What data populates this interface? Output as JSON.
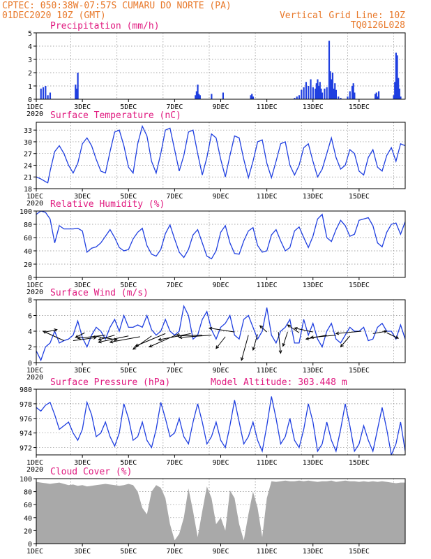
{
  "header": {
    "line1": "CPTEC:  050:38W-07:57S  CUMARU DO NORTE (PA)",
    "line2_left": "01DEC2020 10Z (GMT)",
    "line2_right": "Vertical Grid Line: 10Z",
    "line3_right": "TQ0126L028"
  },
  "model_altitude": "Model Altitude: 303.448 m",
  "x_tick_labels": [
    "1DEC",
    "3DEC",
    "5DEC",
    "7DEC",
    "9DEC",
    "11DEC",
    "13DEC",
    "15DEC"
  ],
  "x_year_label": "2020",
  "colors": {
    "header": "#e8792b",
    "panel_title": "#e0197f",
    "line": "#1f3fe0",
    "precip_bar": "#1f3fe0",
    "cloud_fill": "#a9a9a9",
    "wind_arrow": "#000000"
  },
  "chart_data": [
    {
      "type": "bar",
      "title": "Precipitation (mm/h)",
      "ylim": [
        0,
        5
      ],
      "yticks": [
        0,
        1,
        2,
        3,
        4,
        5
      ],
      "x": [
        0.2,
        0.3,
        0.4,
        0.5,
        0.6,
        1.7,
        1.75,
        1.8,
        6.9,
        6.95,
        7.0,
        7.05,
        7.1,
        7.6,
        8.1,
        9.3,
        9.35,
        9.4,
        11.2,
        11.3,
        11.4,
        11.5,
        11.6,
        11.7,
        11.8,
        11.9,
        12.0,
        12.1,
        12.15,
        12.2,
        12.25,
        12.3,
        12.35,
        12.4,
        12.5,
        12.6,
        12.7,
        12.75,
        12.8,
        12.85,
        12.9,
        12.95,
        13.0,
        13.1,
        13.2,
        13.5,
        13.6,
        13.7,
        13.75,
        13.8,
        14.7,
        14.75,
        14.8,
        14.85,
        15.5,
        15.55,
        15.6,
        15.65,
        15.7,
        15.75,
        15.8
      ],
      "values": [
        0.8,
        0.9,
        1.0,
        0.3,
        0.5,
        1.1,
        0.8,
        2.0,
        0.3,
        0.6,
        1.1,
        0.4,
        0.3,
        0.4,
        0.5,
        0.3,
        0.4,
        0.2,
        0.1,
        0.2,
        0.3,
        0.7,
        0.9,
        1.3,
        1.0,
        1.5,
        0.9,
        0.8,
        1.2,
        1.5,
        1.0,
        1.3,
        0.8,
        0.5,
        0.8,
        0.9,
        4.4,
        2.1,
        1.5,
        2.0,
        0.8,
        1.2,
        0.7,
        0.2,
        0.1,
        0.2,
        0.6,
        1.0,
        1.2,
        0.5,
        0.4,
        0.5,
        0.2,
        0.6,
        0.3,
        1.3,
        3.5,
        3.3,
        1.6,
        0.8,
        0.2
      ]
    },
    {
      "type": "line",
      "title": "Surface Temperature (nC)",
      "ylim": [
        18,
        35
      ],
      "yticks": [
        18,
        21,
        24,
        27,
        30,
        33
      ],
      "x": [
        0.0,
        0.2,
        0.4,
        0.5,
        0.6,
        0.8,
        1.0,
        1.2,
        1.4,
        1.6,
        1.8,
        2.0,
        2.2,
        2.4,
        2.6,
        2.8,
        3.0,
        3.2,
        3.4,
        3.6,
        3.8,
        4.0,
        4.2,
        4.4,
        4.6,
        4.8,
        5.0,
        5.2,
        5.4,
        5.6,
        5.8,
        6.0,
        6.2,
        6.4,
        6.6,
        6.8,
        7.0,
        7.2,
        7.4,
        7.6,
        7.8,
        8.0,
        8.2,
        8.4,
        8.6,
        8.8,
        9.0,
        9.2,
        9.4,
        9.6,
        9.8,
        10.0,
        10.2,
        10.4,
        10.6,
        10.8,
        11.0,
        11.2,
        11.4,
        11.6,
        11.8,
        12.0,
        12.2,
        12.4,
        12.6,
        12.8,
        13.0,
        13.2,
        13.4,
        13.6,
        13.8,
        14.0,
        14.2,
        14.4,
        14.6,
        14.8,
        15.0,
        15.2,
        15.4,
        15.6,
        15.8,
        16.0
      ],
      "values": [
        21.0,
        20.5,
        19.8,
        19.5,
        22.5,
        27.5,
        29.0,
        27.0,
        24.0,
        22.0,
        24.5,
        29.5,
        31.0,
        29.0,
        25.5,
        22.5,
        22.0,
        27.5,
        32.5,
        33.0,
        29.0,
        23.5,
        22.0,
        29.5,
        34.0,
        31.5,
        25.0,
        22.0,
        27.0,
        33.0,
        33.5,
        28.0,
        22.5,
        26.5,
        32.5,
        33.0,
        27.0,
        21.5,
        26.0,
        32.0,
        31.0,
        25.5,
        21.0,
        26.5,
        31.5,
        31.0,
        25.5,
        20.8,
        25.0,
        30.0,
        30.5,
        24.5,
        20.8,
        25.0,
        29.5,
        30.0,
        24.0,
        21.5,
        24.0,
        28.5,
        29.5,
        25.0,
        21.0,
        23.0,
        27.0,
        31.0,
        26.0,
        23.0,
        24.0,
        28.0,
        27.0,
        22.5,
        21.5,
        26.0,
        28.0,
        23.5,
        22.5,
        26.5,
        28.5,
        25.0,
        29.5,
        29.0
      ]
    },
    {
      "type": "line",
      "title": "Relative Humidity (%)",
      "ylim": [
        0,
        100
      ],
      "yticks": [
        0,
        20,
        40,
        60,
        80,
        100
      ],
      "x": [
        0.0,
        0.2,
        0.4,
        0.6,
        0.8,
        1.0,
        1.2,
        1.4,
        1.6,
        1.8,
        2.0,
        2.2,
        2.4,
        2.6,
        2.8,
        3.0,
        3.2,
        3.4,
        3.6,
        3.8,
        4.0,
        4.2,
        4.4,
        4.6,
        4.8,
        5.0,
        5.2,
        5.4,
        5.6,
        5.8,
        6.0,
        6.2,
        6.4,
        6.6,
        6.8,
        7.0,
        7.2,
        7.4,
        7.6,
        7.8,
        8.0,
        8.2,
        8.4,
        8.6,
        8.8,
        9.0,
        9.2,
        9.4,
        9.6,
        9.8,
        10.0,
        10.2,
        10.4,
        10.6,
        10.8,
        11.0,
        11.2,
        11.4,
        11.6,
        11.8,
        12.0,
        12.2,
        12.4,
        12.6,
        12.8,
        13.0,
        13.2,
        13.4,
        13.6,
        13.8,
        14.0,
        14.2,
        14.4,
        14.6,
        14.8,
        15.0,
        15.2,
        15.4,
        15.6,
        15.8,
        16.0
      ],
      "values": [
        95,
        100,
        98,
        88,
        52,
        78,
        73,
        73,
        73,
        74,
        70,
        38,
        44,
        46,
        52,
        62,
        72,
        60,
        45,
        40,
        42,
        58,
        68,
        74,
        48,
        35,
        32,
        42,
        66,
        79,
        58,
        38,
        30,
        42,
        64,
        72,
        52,
        32,
        28,
        40,
        68,
        78,
        52,
        36,
        35,
        55,
        70,
        75,
        48,
        38,
        40,
        64,
        72,
        55,
        40,
        45,
        70,
        76,
        60,
        45,
        62,
        88,
        95,
        60,
        54,
        72,
        86,
        78,
        62,
        65,
        86,
        88,
        90,
        78,
        52,
        46,
        68,
        80,
        82,
        65,
        84
      ]
    },
    {
      "type": "line",
      "title": "Surface Wind (m/s)",
      "ylim": [
        0,
        8
      ],
      "yticks": [
        0,
        2,
        4,
        6,
        8
      ],
      "x": [
        0.0,
        0.2,
        0.4,
        0.6,
        0.8,
        1.0,
        1.2,
        1.4,
        1.6,
        1.8,
        2.0,
        2.2,
        2.4,
        2.6,
        2.8,
        3.0,
        3.2,
        3.4,
        3.6,
        3.8,
        4.0,
        4.2,
        4.4,
        4.6,
        4.8,
        5.0,
        5.2,
        5.4,
        5.6,
        5.8,
        6.0,
        6.2,
        6.4,
        6.6,
        6.8,
        7.0,
        7.2,
        7.4,
        7.6,
        7.8,
        8.0,
        8.2,
        8.4,
        8.6,
        8.8,
        9.0,
        9.2,
        9.4,
        9.6,
        9.8,
        10.0,
        10.2,
        10.4,
        10.6,
        10.8,
        11.0,
        11.2,
        11.4,
        11.6,
        11.8,
        12.0,
        12.2,
        12.4,
        12.6,
        12.8,
        13.0,
        13.2,
        13.4,
        13.6,
        13.8,
        14.0,
        14.2,
        14.4,
        14.6,
        14.8,
        15.0,
        15.2,
        15.4,
        15.6,
        15.8,
        16.0
      ],
      "values": [
        1.5,
        0.3,
        2.0,
        2.5,
        4.0,
        2.5,
        2.8,
        3.0,
        3.5,
        5.3,
        3.2,
        2.0,
        3.5,
        4.5,
        4.0,
        3.0,
        4.5,
        5.5,
        4.0,
        6.0,
        4.5,
        4.5,
        4.8,
        4.5,
        6.0,
        4.2,
        3.5,
        4.0,
        5.5,
        4.0,
        3.5,
        4.0,
        7.2,
        6.0,
        3.0,
        3.5,
        5.5,
        6.5,
        4.2,
        3.0,
        4.5,
        5.0,
        6.0,
        3.5,
        3.0,
        5.5,
        6.0,
        4.5,
        3.0,
        4.0,
        7.0,
        3.5,
        2.5,
        4.0,
        4.5,
        5.5,
        2.5,
        2.5,
        5.5,
        3.5,
        5.0,
        3.0,
        2.0,
        4.0,
        5.0,
        3.0,
        2.5,
        3.5,
        4.5,
        4.0,
        4.0,
        4.5,
        2.8,
        3.0,
        4.5,
        5.0,
        4.0,
        4.0,
        3.0,
        4.8,
        3.0
      ],
      "arrows": [
        {
          "x": 0.4,
          "y": 3.9,
          "u": 0.5,
          "v": 0.3
        },
        {
          "x": 1.2,
          "y": 2.8,
          "u": -0.9,
          "v": 1.2
        },
        {
          "x": 1.6,
          "y": 2.8,
          "u": 1.0,
          "v": 0.4
        },
        {
          "x": 2.1,
          "y": 3.8,
          "u": -0.4,
          "v": -0.6
        },
        {
          "x": 2.5,
          "y": 3.4,
          "u": 1.0,
          "v": -0.5
        },
        {
          "x": 3.0,
          "y": 3.5,
          "u": -1.2,
          "v": -0.4
        },
        {
          "x": 3.4,
          "y": 3.5,
          "u": -0.7,
          "v": -0.6
        },
        {
          "x": 4.0,
          "y": 3.4,
          "u": -1.3,
          "v": -0.8
        },
        {
          "x": 4.5,
          "y": 3.3,
          "u": -1.3,
          "v": -0.7
        },
        {
          "x": 5.0,
          "y": 3.4,
          "u": -0.8,
          "v": -1.7
        },
        {
          "x": 5.6,
          "y": 3.7,
          "u": -1.3,
          "v": -1.6
        },
        {
          "x": 6.2,
          "y": 3.7,
          "u": -1.3,
          "v": -1.7
        },
        {
          "x": 6.7,
          "y": 3.7,
          "u": -1.4,
          "v": -0.8
        },
        {
          "x": 7.2,
          "y": 3.5,
          "u": -1.1,
          "v": -0.1
        },
        {
          "x": 7.6,
          "y": 3.5,
          "u": -1.4,
          "v": -0.3
        },
        {
          "x": 8.2,
          "y": 3.3,
          "u": -0.4,
          "v": -1.5
        },
        {
          "x": 8.6,
          "y": 3.9,
          "u": -1.1,
          "v": 0.5
        },
        {
          "x": 9.2,
          "y": 3.5,
          "u": -0.3,
          "v": -3.2
        },
        {
          "x": 9.6,
          "y": 3.6,
          "u": -0.2,
          "v": -2.0
        },
        {
          "x": 10.0,
          "y": 3.9,
          "u": -0.3,
          "v": 0.8
        },
        {
          "x": 10.5,
          "y": 3.9,
          "u": 0.1,
          "v": -2.7
        },
        {
          "x": 10.9,
          "y": 3.9,
          "u": -0.2,
          "v": -1.8
        },
        {
          "x": 11.4,
          "y": 3.8,
          "u": -0.5,
          "v": 1.0
        },
        {
          "x": 12.0,
          "y": 3.9,
          "u": -0.8,
          "v": 0.5
        },
        {
          "x": 12.6,
          "y": 3.5,
          "u": -0.9,
          "v": -0.5
        },
        {
          "x": 13.0,
          "y": 3.5,
          "u": -1.1,
          "v": -0.3
        },
        {
          "x": 13.6,
          "y": 3.4,
          "u": -0.4,
          "v": -1.4
        },
        {
          "x": 14.1,
          "y": 4.0,
          "u": -1.1,
          "v": -0.3
        },
        {
          "x": 14.6,
          "y": 3.7,
          "u": 0.6,
          "v": 0.3
        },
        {
          "x": 15.2,
          "y": 3.8,
          "u": 0.5,
          "v": -0.7
        }
      ]
    },
    {
      "type": "line",
      "title": "Surface Pressure (hPa)",
      "ylim": [
        971,
        980
      ],
      "yticks": [
        972,
        974,
        976,
        978,
        980
      ],
      "x": [
        0.0,
        0.2,
        0.4,
        0.6,
        0.8,
        1.0,
        1.2,
        1.4,
        1.6,
        1.8,
        2.0,
        2.2,
        2.4,
        2.6,
        2.8,
        3.0,
        3.2,
        3.4,
        3.6,
        3.8,
        4.0,
        4.2,
        4.4,
        4.6,
        4.8,
        5.0,
        5.2,
        5.4,
        5.6,
        5.8,
        6.0,
        6.2,
        6.4,
        6.6,
        6.8,
        7.0,
        7.2,
        7.4,
        7.6,
        7.8,
        8.0,
        8.2,
        8.4,
        8.6,
        8.8,
        9.0,
        9.2,
        9.4,
        9.6,
        9.8,
        10.0,
        10.2,
        10.4,
        10.6,
        10.8,
        11.0,
        11.2,
        11.4,
        11.6,
        11.8,
        12.0,
        12.2,
        12.4,
        12.6,
        12.8,
        13.0,
        13.2,
        13.4,
        13.6,
        13.8,
        14.0,
        14.2,
        14.4,
        14.6,
        14.8,
        15.0,
        15.2,
        15.4,
        15.6,
        15.8,
        16.0
      ],
      "values": [
        977.5,
        977.0,
        977.8,
        978.2,
        976.5,
        974.5,
        975.0,
        975.5,
        974.0,
        973.0,
        974.5,
        978.2,
        976.5,
        973.5,
        974.0,
        975.5,
        973.5,
        972.2,
        974.0,
        978.0,
        976.0,
        973.0,
        973.5,
        975.5,
        973.0,
        972.0,
        974.5,
        978.2,
        976.0,
        973.5,
        974.0,
        976.0,
        973.5,
        972.5,
        975.5,
        978.0,
        975.5,
        972.5,
        973.5,
        975.5,
        973.0,
        972.0,
        975.0,
        978.5,
        975.5,
        972.5,
        973.5,
        975.5,
        973.0,
        971.5,
        975.0,
        979.0,
        976.0,
        972.5,
        973.5,
        976.0,
        973.0,
        972.0,
        974.5,
        978.0,
        975.5,
        971.5,
        972.5,
        975.5,
        973.0,
        971.5,
        974.5,
        978.0,
        975.0,
        971.5,
        972.5,
        975.0,
        973.0,
        971.5,
        974.5,
        977.5,
        974.5,
        971.0,
        972.5,
        975.5,
        971.5
      ]
    },
    {
      "type": "area",
      "title": "Cloud Cover (%)",
      "ylim": [
        0,
        100
      ],
      "yticks": [
        0,
        20,
        40,
        60,
        80,
        100
      ],
      "x": [
        0.0,
        0.2,
        0.4,
        0.6,
        0.8,
        1.0,
        1.2,
        1.4,
        1.6,
        1.8,
        2.0,
        2.2,
        2.4,
        2.6,
        2.8,
        3.0,
        3.2,
        3.4,
        3.6,
        3.8,
        4.0,
        4.2,
        4.4,
        4.6,
        4.8,
        5.0,
        5.2,
        5.4,
        5.6,
        5.8,
        6.0,
        6.2,
        6.4,
        6.6,
        6.8,
        7.0,
        7.2,
        7.4,
        7.6,
        7.8,
        8.0,
        8.2,
        8.4,
        8.6,
        8.8,
        9.0,
        9.2,
        9.4,
        9.6,
        9.8,
        10.0,
        10.2,
        10.4,
        10.6,
        10.8,
        11.0,
        11.2,
        11.4,
        11.6,
        11.8,
        12.0,
        12.2,
        12.4,
        12.6,
        12.8,
        13.0,
        13.2,
        13.4,
        13.6,
        13.8,
        14.0,
        14.2,
        14.4,
        14.6,
        14.8,
        15.0,
        15.2,
        15.4,
        15.6,
        15.8,
        16.0
      ],
      "values": [
        95,
        94,
        93,
        92,
        93,
        94,
        92,
        90,
        91,
        89,
        90,
        88,
        89,
        90,
        91,
        92,
        91,
        90,
        89,
        90,
        92,
        90,
        80,
        55,
        45,
        80,
        90,
        86,
        70,
        30,
        5,
        15,
        40,
        85,
        50,
        10,
        50,
        88,
        70,
        30,
        40,
        20,
        82,
        70,
        30,
        5,
        45,
        80,
        55,
        10,
        70,
        96,
        95,
        96,
        97,
        96,
        96,
        97,
        96,
        97,
        96,
        95,
        96,
        96,
        97,
        95,
        96,
        97,
        96,
        96,
        95,
        96,
        95,
        96,
        95,
        96,
        95,
        94,
        93,
        94,
        94
      ]
    }
  ]
}
